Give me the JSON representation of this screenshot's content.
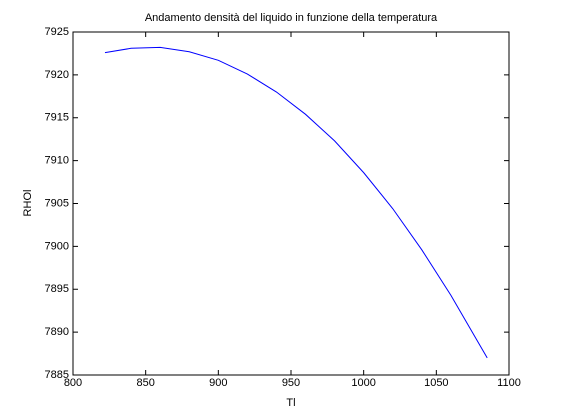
{
  "chart_data": {
    "type": "line",
    "title": "Andamento densità del liquido in funzione della temperatura",
    "x_label": "Tl",
    "y_label": "RHOl",
    "x": [
      822,
      840,
      860,
      880,
      900,
      920,
      940,
      960,
      980,
      1000,
      1020,
      1040,
      1060,
      1085
    ],
    "series": [
      {
        "name": "RHOl",
        "color": "#0000ff",
        "values": [
          7922.6,
          7923.1,
          7923.2,
          7922.7,
          7921.7,
          7920.1,
          7918.0,
          7915.4,
          7912.3,
          7908.6,
          7904.4,
          7899.6,
          7894.3,
          7887.0
        ]
      }
    ],
    "xlim": [
      800,
      1100
    ],
    "xticks": [
      800,
      850,
      900,
      950,
      1000,
      1050,
      1100
    ],
    "ylim": [
      7885,
      7925
    ],
    "yticks": [
      7885,
      7890,
      7895,
      7900,
      7905,
      7910,
      7915,
      7920,
      7925
    ],
    "grid": false
  }
}
